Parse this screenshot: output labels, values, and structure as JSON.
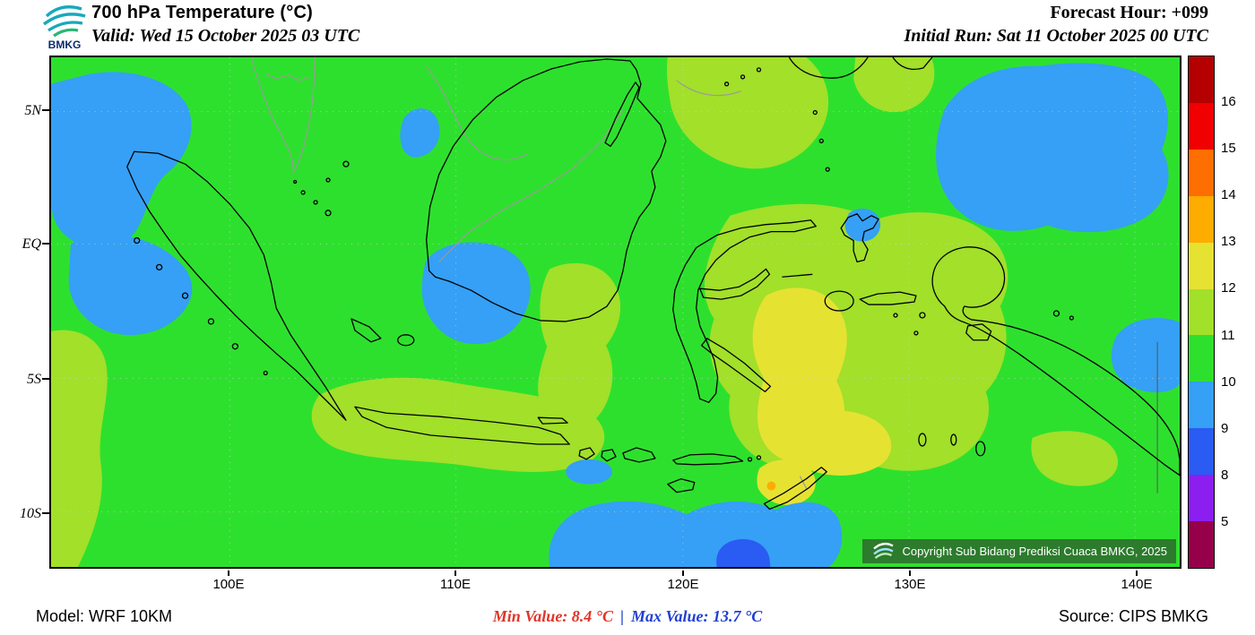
{
  "header": {
    "logo_text": "BMKG",
    "title": "700 hPa Temperature (°C)",
    "valid": "Valid: Wed 15 October 2025 03 UTC",
    "forecast_hour": "Forecast Hour: +099",
    "initial_run": "Initial Run: Sat 11 October 2025 00 UTC"
  },
  "map": {
    "y_ticks": [
      "5N",
      "EQ",
      "5S",
      "10S"
    ],
    "x_ticks": [
      "100E",
      "110E",
      "120E",
      "130E",
      "140E"
    ],
    "copyright": "Copyright Sub Bidang Prediksi Cuaca BMKG, 2025"
  },
  "colorbar": {
    "labels": [
      "16",
      "15",
      "14",
      "13",
      "12",
      "11",
      "10",
      "9",
      "8",
      "5"
    ],
    "segments": [
      "#B40000",
      "#F00000",
      "#FF6E00",
      "#FFAC00",
      "#E6E232",
      "#A2E02A",
      "#2EE02E",
      "#35A0F5",
      "#2A5BF2",
      "#8C1EF0",
      "#96004B"
    ]
  },
  "footer": {
    "model": "Model: WRF 10KM",
    "min_label": "Min Value: 8.4 °C",
    "separator": "|",
    "max_label": "Max Value: 13.7 °C",
    "source": "Source: CIPS BMKG"
  },
  "chart_data": {
    "type": "heatmap",
    "title": "700 hPa Temperature (°C)",
    "region": "Indonesia",
    "lat_ticks": [
      "5N",
      "EQ",
      "5S",
      "10S"
    ],
    "lon_ticks": [
      "100E",
      "110E",
      "120E",
      "130E",
      "140E"
    ],
    "levels_c": [
      5,
      8,
      9,
      10,
      11,
      12,
      13,
      14,
      15,
      16
    ],
    "palette_low_to_high": [
      "#96004B",
      "#8C1EF0",
      "#2A5BF2",
      "#35A0F5",
      "#2EE02E",
      "#A2E02A",
      "#E6E232",
      "#FFAC00",
      "#FF6E00",
      "#F00000",
      "#B40000"
    ],
    "min_value_c": 8.4,
    "max_value_c": 13.7,
    "dominant_band_c": "10-11",
    "forecast_hour": "+099",
    "valid_time": "Wed 15 October 2025 03 UTC",
    "initial_run": "Sat 11 October 2025 00 UTC",
    "model": "WRF 10KM",
    "source": "CIPS BMKG"
  }
}
